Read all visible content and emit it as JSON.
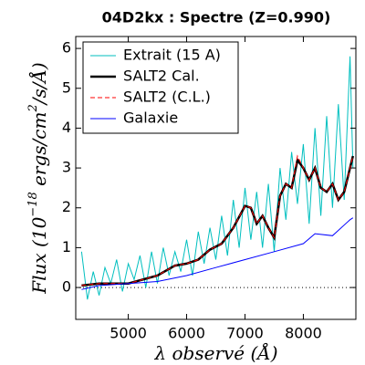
{
  "chart_data": {
    "type": "line",
    "title": "04D2kx : Spectre (Z=0.990)",
    "xlabel": [
      "λ",
      " observé",
      " (Å)"
    ],
    "ylabel": [
      "Flux",
      " (10",
      "−18",
      " ergs/cm",
      "2",
      "/s/Å)"
    ],
    "xlim": [
      4100,
      8900
    ],
    "ylim": [
      -0.8,
      6.3
    ],
    "xticks": [
      5000,
      6000,
      7000,
      8000
    ],
    "yticks": [
      0,
      1,
      2,
      3,
      4,
      5,
      6
    ],
    "hline": 0,
    "legend": "upper left",
    "series": [
      {
        "name": "Extrait (15 A)",
        "color": "#00bfbf",
        "style": "solid",
        "width": 1,
        "x": [
          4200,
          4300,
          4400,
          4500,
          4600,
          4700,
          4800,
          4900,
          5000,
          5100,
          5200,
          5300,
          5400,
          5500,
          5600,
          5700,
          5800,
          5900,
          6000,
          6100,
          6200,
          6300,
          6400,
          6500,
          6600,
          6700,
          6800,
          6900,
          7000,
          7100,
          7200,
          7300,
          7400,
          7500,
          7600,
          7700,
          7800,
          7900,
          8000,
          8100,
          8200,
          8300,
          8400,
          8500,
          8600,
          8700,
          8800,
          8850
        ],
        "values": [
          0.9,
          -0.3,
          0.4,
          -0.2,
          0.5,
          0.1,
          0.7,
          -0.1,
          0.6,
          0.2,
          0.8,
          0.0,
          0.9,
          0.1,
          1.0,
          0.3,
          0.9,
          0.4,
          1.2,
          0.3,
          1.4,
          0.6,
          1.5,
          0.7,
          1.8,
          0.8,
          2.2,
          1.0,
          2.5,
          1.2,
          2.4,
          1.0,
          2.6,
          0.9,
          3.0,
          1.7,
          3.4,
          2.1,
          3.6,
          1.6,
          4.0,
          1.8,
          4.3,
          2.0,
          4.6,
          2.2,
          5.8,
          3.0
        ]
      },
      {
        "name": "SALT2 Cal.",
        "color": "#000000",
        "style": "solid",
        "width": 2.5,
        "x": [
          4200,
          4500,
          5000,
          5500,
          5800,
          6000,
          6200,
          6400,
          6600,
          6800,
          7000,
          7100,
          7200,
          7300,
          7400,
          7500,
          7600,
          7700,
          7800,
          7900,
          8000,
          8100,
          8200,
          8300,
          8400,
          8500,
          8600,
          8700,
          8800,
          8850
        ],
        "values": [
          0.05,
          0.1,
          0.1,
          0.3,
          0.55,
          0.6,
          0.7,
          0.95,
          1.1,
          1.5,
          2.05,
          2.0,
          1.6,
          1.8,
          1.5,
          1.25,
          2.3,
          2.6,
          2.5,
          3.2,
          3.0,
          2.7,
          3.0,
          2.5,
          2.4,
          2.6,
          2.2,
          2.4,
          3.0,
          3.3
        ]
      },
      {
        "name": "SALT2 (C.L.)",
        "color": "#ff0000",
        "style": "dashed",
        "width": 1,
        "x": [
          4200,
          4500,
          5000,
          5500,
          5800,
          6000,
          6200,
          6400,
          6600,
          6800,
          7000,
          7100,
          7200,
          7300,
          7400,
          7500,
          7600,
          7700,
          7800,
          7900,
          8000,
          8100,
          8200,
          8300,
          8400,
          8500,
          8600,
          8700,
          8800,
          8850
        ],
        "values": [
          0.05,
          0.1,
          0.1,
          0.3,
          0.55,
          0.6,
          0.7,
          0.95,
          1.1,
          1.5,
          2.05,
          2.0,
          1.6,
          1.8,
          1.5,
          1.25,
          2.3,
          2.6,
          2.5,
          3.3,
          3.0,
          2.7,
          3.0,
          2.5,
          2.4,
          2.6,
          2.2,
          2.4,
          3.0,
          3.3
        ]
      },
      {
        "name": "Galaxie",
        "color": "#0000ff",
        "style": "solid",
        "width": 1,
        "x": [
          4200,
          4500,
          5000,
          5500,
          6000,
          6500,
          7000,
          7500,
          8000,
          8200,
          8500,
          8800,
          8850
        ],
        "values": [
          -0.05,
          0.05,
          0.1,
          0.15,
          0.3,
          0.5,
          0.7,
          0.9,
          1.1,
          1.35,
          1.3,
          1.7,
          1.75
        ]
      }
    ]
  }
}
